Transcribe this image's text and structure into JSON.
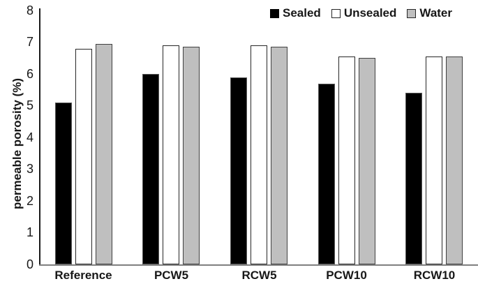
{
  "chart_data": {
    "type": "bar",
    "title": "",
    "xlabel": "",
    "ylabel": "permeable porosity (%)",
    "ylim": [
      0,
      8
    ],
    "yticks": [
      0,
      1,
      2,
      3,
      4,
      5,
      6,
      7,
      8
    ],
    "grid": false,
    "legend_position": "top-right",
    "categories": [
      "Reference",
      "PCW5",
      "RCW5",
      "PCW10",
      "RCW10"
    ],
    "series": [
      {
        "name": "Sealed",
        "fill": "#000000",
        "stroke": "#595959",
        "values": [
          5.1,
          6.0,
          5.9,
          5.7,
          5.4
        ]
      },
      {
        "name": "Unsealed",
        "fill": "#ffffff",
        "stroke": "#262626",
        "values": [
          6.8,
          6.9,
          6.9,
          6.55,
          6.55
        ]
      },
      {
        "name": "Water",
        "fill": "#bfbfbf",
        "stroke": "#404040",
        "values": [
          6.95,
          6.85,
          6.85,
          6.5,
          6.55
        ]
      }
    ],
    "axis_colors": {
      "y_axis_line": "#1a1a1a",
      "x_axis_line": "#7f7f7f"
    }
  }
}
